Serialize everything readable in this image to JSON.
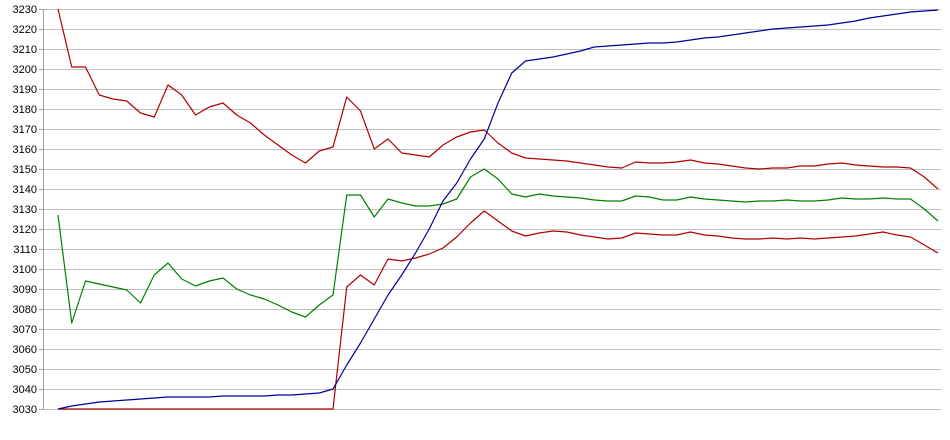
{
  "chart_data": {
    "type": "line",
    "title": "",
    "xlabel": "",
    "ylabel": "",
    "x_axis": {
      "labels_visible": false
    },
    "y_axis": {
      "min": 3030,
      "max": 3230,
      "step": 10
    },
    "y_ticks": [
      3230,
      3220,
      3210,
      3200,
      3190,
      3180,
      3170,
      3160,
      3150,
      3140,
      3130,
      3120,
      3110,
      3100,
      3090,
      3080,
      3070,
      3060,
      3050,
      3040,
      3030
    ],
    "grid": "horizontal",
    "legend": "none",
    "n_points": 65,
    "colors": {
      "red": "#b00000",
      "green": "#008000",
      "blue": "#000099",
      "gridline": "#c0c0c0",
      "axis": "#a0a0a0",
      "background": "#ffffff",
      "label": "#000000"
    },
    "series": [
      {
        "name": "upper-red",
        "color": "#b00000",
        "values": [
          3230,
          3201,
          3201,
          3187,
          3185,
          3184,
          3178,
          3176,
          3192,
          3187,
          3177,
          3181,
          3183,
          3177,
          3173,
          3167,
          3162,
          3157,
          3153,
          3159,
          3161,
          3186,
          3179,
          3160,
          3165,
          3158,
          3157,
          3156,
          3162,
          3166,
          3168.5,
          3169.5,
          3163,
          3158,
          3155.5,
          3155,
          3154.5,
          3154,
          3153,
          3152,
          3151,
          3150.5,
          3153.5,
          3153,
          3153,
          3153.5,
          3154.5,
          3153,
          3152.5,
          3151.5,
          3150.5,
          3150,
          3150.5,
          3150.5,
          3151.5,
          3151.5,
          3152.5,
          3153,
          3152,
          3151.5,
          3151,
          3151,
          3150.5,
          3146,
          3140
        ]
      },
      {
        "name": "green",
        "color": "#008000",
        "values": [
          3127,
          3073,
          3094,
          3092.5,
          3091,
          3089.5,
          3083,
          3097,
          3103,
          3095,
          3091.5,
          3094,
          3095.5,
          3090,
          3087,
          3085,
          3082,
          3078.5,
          3076,
          3082,
          3087,
          3137,
          3137,
          3126,
          3135,
          3133,
          3131.5,
          3131.5,
          3132.5,
          3135,
          3146,
          3150,
          3145,
          3137.5,
          3136,
          3137.5,
          3136.5,
          3136,
          3135.5,
          3134.5,
          3134,
          3134,
          3136.5,
          3136,
          3134.5,
          3134.5,
          3136,
          3135,
          3134.5,
          3134,
          3133.5,
          3134,
          3134,
          3134.5,
          3134,
          3134,
          3134.5,
          3135.5,
          3135,
          3135,
          3135.5,
          3135,
          3135,
          3130,
          3124
        ]
      },
      {
        "name": "lower-red",
        "color": "#b00000",
        "values": [
          3030,
          3030,
          3030,
          3030,
          3030,
          3030,
          3030,
          3030,
          3030,
          3030,
          3030,
          3030,
          3030,
          3030,
          3030,
          3030,
          3030,
          3030,
          3030,
          3030,
          3030,
          3091,
          3097,
          3092,
          3105,
          3104,
          3105.5,
          3107.5,
          3110.5,
          3116,
          3123,
          3129,
          3124,
          3119,
          3116.5,
          3118,
          3119,
          3118.5,
          3117,
          3116,
          3115,
          3115.5,
          3118,
          3117.5,
          3117,
          3117,
          3118.5,
          3117,
          3116.5,
          3115.5,
          3115,
          3115,
          3115.5,
          3115,
          3115.5,
          3115,
          3115.5,
          3116,
          3116.5,
          3117.5,
          3118.5,
          3117,
          3116,
          3112,
          3108
        ]
      },
      {
        "name": "blue",
        "color": "#000099",
        "values": [
          3030,
          3031.5,
          3032.5,
          3033.5,
          3034,
          3034.5,
          3035,
          3035.5,
          3036,
          3036,
          3036,
          3036,
          3036.5,
          3036.5,
          3036.5,
          3036.5,
          3037,
          3037,
          3037.5,
          3038,
          3040,
          3052,
          3063,
          3075,
          3087,
          3097,
          3108,
          3120,
          3134,
          3143,
          3155,
          3165,
          3183,
          3198,
          3204,
          3205,
          3206,
          3207.5,
          3209,
          3211,
          3211.5,
          3212,
          3212.5,
          3213,
          3213,
          3213.5,
          3214.5,
          3215.5,
          3216,
          3217,
          3218,
          3219,
          3220,
          3220.5,
          3221,
          3221.5,
          3222,
          3223,
          3224,
          3225.5,
          3226.5,
          3227.5,
          3228.5,
          3229,
          3229.5
        ]
      }
    ]
  }
}
